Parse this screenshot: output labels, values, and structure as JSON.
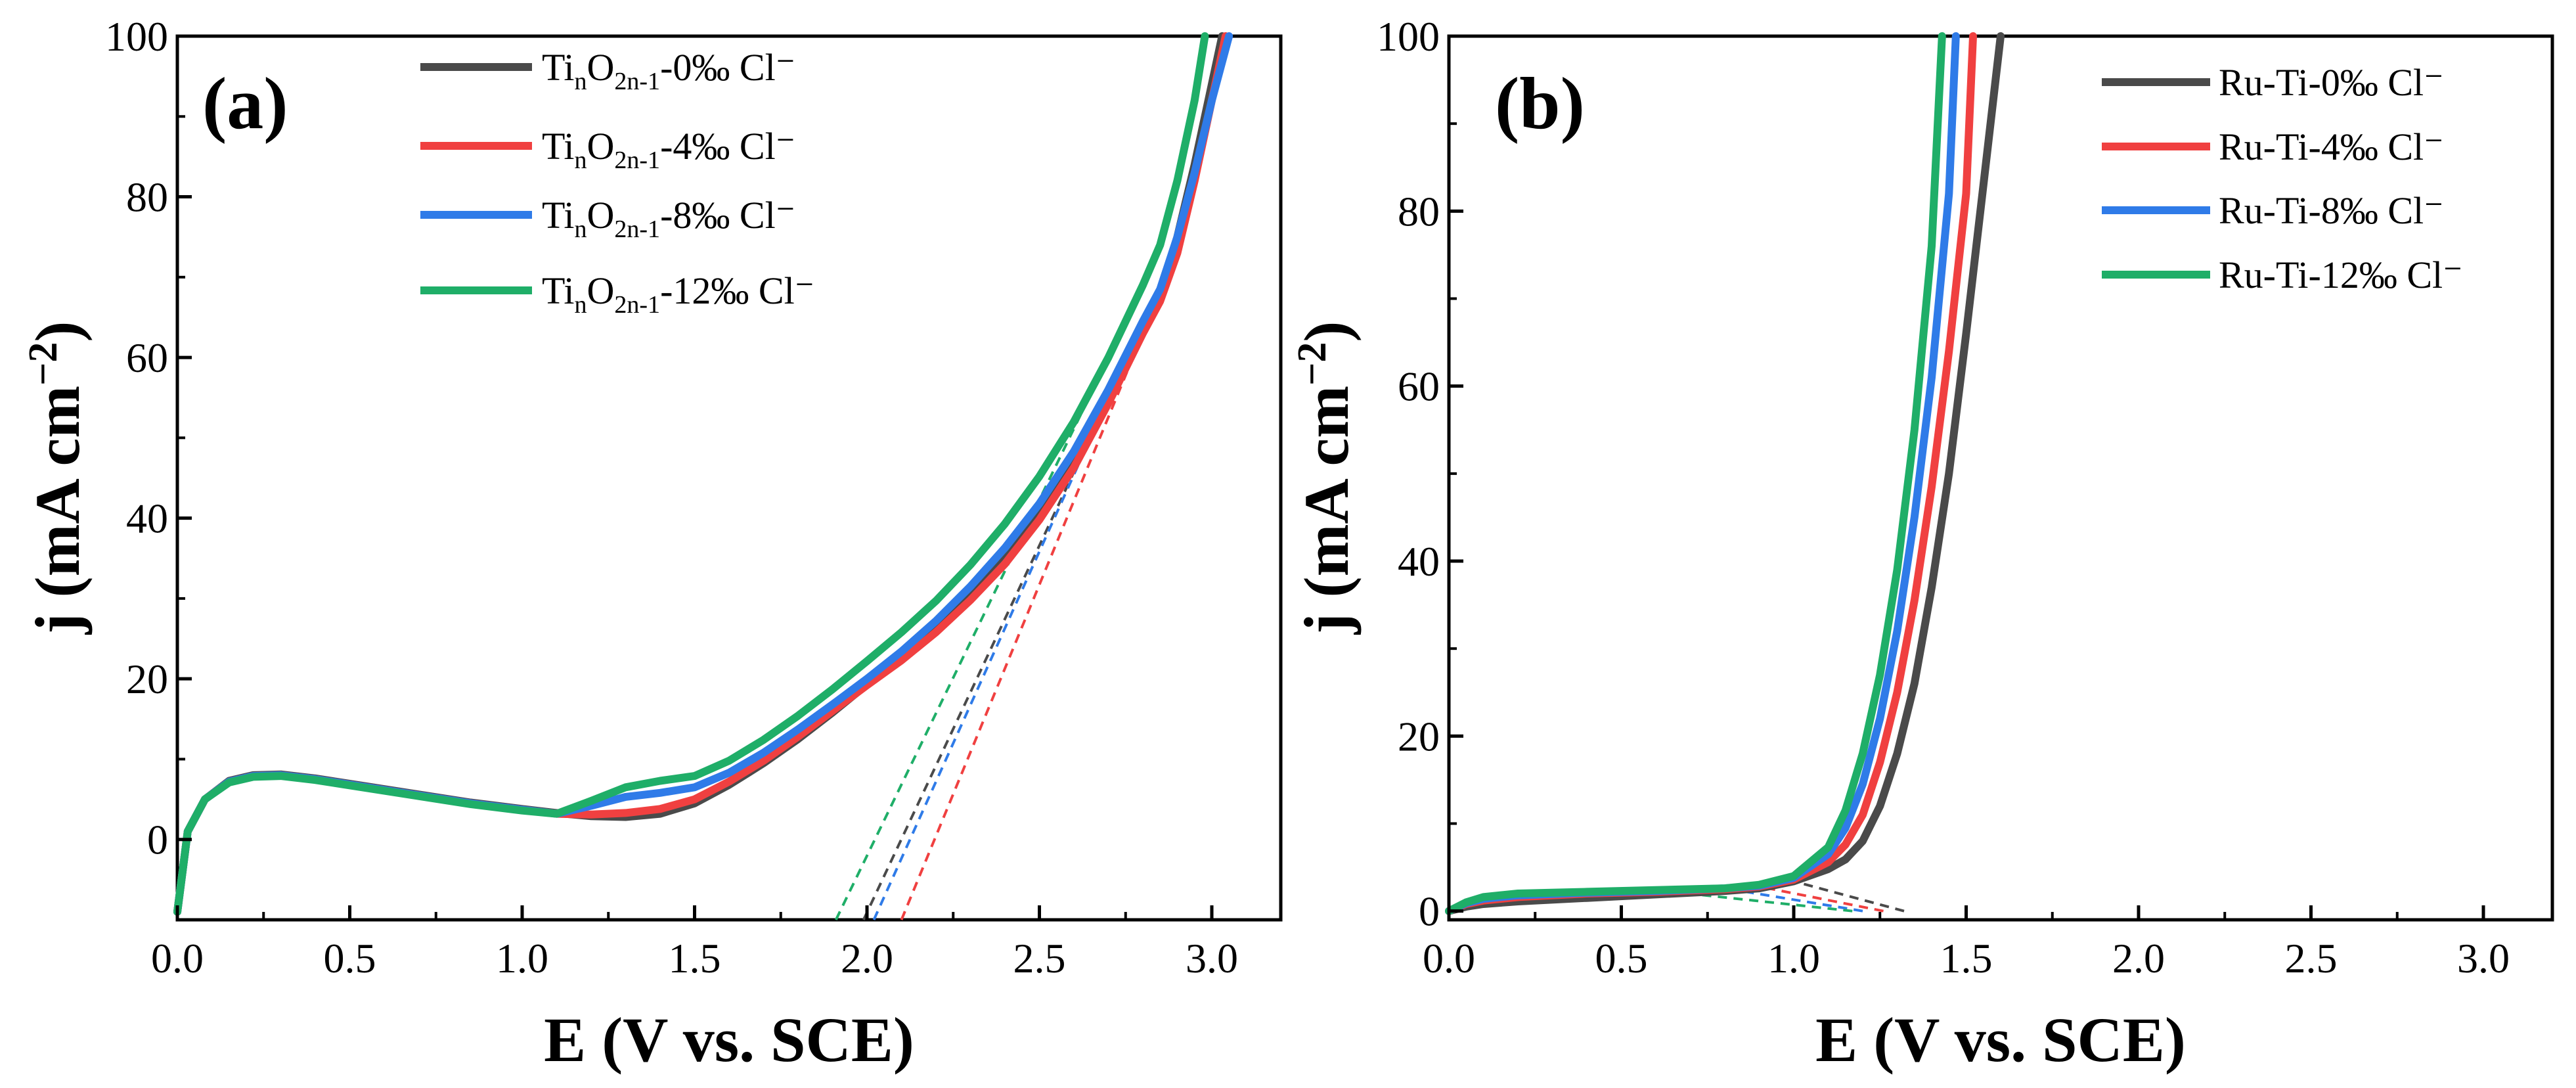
{
  "chart_data": [
    {
      "panel": "(a)",
      "type": "line",
      "xlabel": "E (V vs. SCE)",
      "ylabel": "j (mA cm⁻²)",
      "ylabel_main": "j (mA cm",
      "ylabel_sup": "−2",
      "ylabel_close": ")",
      "xlim": [
        0.0,
        3.2
      ],
      "ylim": [
        -10,
        100
      ],
      "xticks": [
        "0.0",
        "0.5",
        "1.0",
        "1.5",
        "2.0",
        "2.5",
        "3.0"
      ],
      "xtick_values": [
        0.0,
        0.5,
        1.0,
        1.5,
        2.0,
        2.5,
        3.0
      ],
      "yticks": [
        "0",
        "20",
        "40",
        "60",
        "80",
        "100"
      ],
      "ytick_values": [
        0,
        20,
        40,
        60,
        80,
        100
      ],
      "series": [
        {
          "name": "TinO2n-1-0‰ Cl⁻",
          "label_parts": [
            "Ti",
            "n",
            "O",
            "2n-1",
            "-0‰ Cl⁻"
          ],
          "color": "#4a4a4a",
          "x": [
            0.0,
            0.03,
            0.08,
            0.15,
            0.22,
            0.3,
            0.4,
            0.55,
            0.7,
            0.85,
            1.0,
            1.1,
            1.2,
            1.3,
            1.4,
            1.5,
            1.6,
            1.7,
            1.8,
            1.9,
            2.0,
            2.1,
            2.2,
            2.3,
            2.4,
            2.5,
            2.6,
            2.7,
            2.8,
            2.85,
            2.9,
            2.95,
            3.0,
            3.03
          ],
          "y": [
            -9,
            1,
            5,
            7.3,
            8,
            8.1,
            7.6,
            6.6,
            5.6,
            4.6,
            3.8,
            3.3,
            2.9,
            2.8,
            3.2,
            4.5,
            6.8,
            9.5,
            12.5,
            15.8,
            19.3,
            22.8,
            26.5,
            30.6,
            35.2,
            40.6,
            47,
            55,
            64,
            68,
            75,
            84,
            94,
            100
          ],
          "onset": 1.99
        },
        {
          "name": "TinO2n-1-4‰ Cl⁻",
          "label_parts": [
            "Ti",
            "n",
            "O",
            "2n-1",
            "-4‰ Cl⁻"
          ],
          "color": "#f04040",
          "x": [
            0.0,
            0.03,
            0.08,
            0.15,
            0.22,
            0.3,
            0.4,
            0.55,
            0.7,
            0.85,
            1.0,
            1.1,
            1.2,
            1.3,
            1.4,
            1.5,
            1.6,
            1.7,
            1.8,
            1.9,
            2.0,
            2.1,
            2.2,
            2.3,
            2.4,
            2.5,
            2.6,
            2.7,
            2.8,
            2.85,
            2.9,
            2.95,
            3.0,
            3.04
          ],
          "y": [
            -9,
            1,
            5,
            7.2,
            7.9,
            8,
            7.5,
            6.5,
            5.5,
            4.5,
            3.7,
            3.2,
            3.1,
            3.3,
            3.8,
            5,
            7.2,
            9.8,
            12.8,
            16,
            19.2,
            22.3,
            25.8,
            29.8,
            34.3,
            39.8,
            46.3,
            54.3,
            63,
            67,
            73,
            82,
            92,
            100
          ],
          "onset": 2.1
        },
        {
          "name": "TinO2n-1-8‰ Cl⁻",
          "label_parts": [
            "Ti",
            "n",
            "O",
            "2n-1",
            "-8‰ Cl⁻"
          ],
          "color": "#2f7be8",
          "x": [
            0.0,
            0.03,
            0.08,
            0.15,
            0.22,
            0.3,
            0.4,
            0.55,
            0.7,
            0.85,
            1.0,
            1.1,
            1.2,
            1.3,
            1.4,
            1.5,
            1.6,
            1.7,
            1.8,
            1.9,
            2.0,
            2.1,
            2.2,
            2.3,
            2.4,
            2.5,
            2.6,
            2.7,
            2.8,
            2.85,
            2.9,
            2.95,
            3.0,
            3.05
          ],
          "y": [
            -9,
            1,
            5,
            7.2,
            7.9,
            8,
            7.5,
            6.5,
            5.5,
            4.5,
            3.7,
            3.2,
            4.2,
            5.3,
            5.8,
            6.5,
            8.3,
            10.8,
            13.7,
            16.8,
            20,
            23.4,
            27.2,
            31.5,
            36.3,
            41.8,
            48.3,
            56,
            64.5,
            68.5,
            75,
            83,
            92,
            100
          ],
          "onset": 2.02
        },
        {
          "name": "TinO2n-1-12‰ Cl⁻",
          "label_parts": [
            "Ti",
            "n",
            "O",
            "2n-1",
            "-12‰ Cl⁻"
          ],
          "color": "#1fae68",
          "x": [
            0.0,
            0.03,
            0.08,
            0.15,
            0.22,
            0.3,
            0.4,
            0.55,
            0.7,
            0.85,
            1.0,
            1.1,
            1.2,
            1.3,
            1.4,
            1.5,
            1.6,
            1.7,
            1.8,
            1.9,
            2.0,
            2.1,
            2.2,
            2.3,
            2.4,
            2.5,
            2.6,
            2.7,
            2.8,
            2.85,
            2.9,
            2.95,
            2.98
          ],
          "y": [
            -9,
            1,
            5,
            7.1,
            7.8,
            7.9,
            7.4,
            6.4,
            5.4,
            4.4,
            3.6,
            3.2,
            4.8,
            6.5,
            7.3,
            7.9,
            9.8,
            12.4,
            15.4,
            18.7,
            22.2,
            25.8,
            29.7,
            34.2,
            39.3,
            45.2,
            52,
            60,
            69,
            74,
            82,
            92,
            100
          ],
          "onset": 1.91
        }
      ]
    },
    {
      "panel": "(b)",
      "type": "line",
      "xlabel": "E (V vs. SCE)",
      "ylabel": "j (mA cm⁻²)",
      "ylabel_main": "j (mA cm",
      "ylabel_sup": "−2",
      "ylabel_close": ")",
      "xlim": [
        0.0,
        3.2
      ],
      "ylim": [
        -1,
        100
      ],
      "xticks": [
        "0.0",
        "0.5",
        "1.0",
        "1.5",
        "2.0",
        "2.5",
        "3.0"
      ],
      "xtick_values": [
        0.0,
        0.5,
        1.0,
        1.5,
        2.0,
        2.5,
        3.0
      ],
      "yticks": [
        "0",
        "20",
        "40",
        "60",
        "80",
        "100"
      ],
      "ytick_values": [
        0,
        20,
        40,
        60,
        80,
        100
      ],
      "series": [
        {
          "name": "Ru-Ti-0‰ Cl⁻",
          "label_parts": [
            "Ru-Ti-0‰ Cl⁻"
          ],
          "color": "#4a4a4a",
          "x": [
            0.0,
            0.05,
            0.1,
            0.2,
            0.4,
            0.6,
            0.8,
            0.9,
            1.0,
            1.1,
            1.15,
            1.2,
            1.25,
            1.3,
            1.35,
            1.4,
            1.45,
            1.5,
            1.55,
            1.6
          ],
          "y": [
            0,
            0.5,
            0.8,
            1.1,
            1.5,
            1.9,
            2.3,
            2.6,
            3.4,
            4.8,
            5.9,
            8,
            12,
            18,
            26,
            37,
            50,
            66,
            83,
            100
          ],
          "onset": 1.32
        },
        {
          "name": "Ru-Ti-4‰ Cl⁻",
          "label_parts": [
            "Ru-Ti-4‰ Cl⁻"
          ],
          "color": "#f04040",
          "x": [
            0.0,
            0.05,
            0.1,
            0.2,
            0.4,
            0.6,
            0.8,
            0.9,
            1.0,
            1.1,
            1.15,
            1.2,
            1.25,
            1.3,
            1.35,
            1.4,
            1.45,
            1.5,
            1.52
          ],
          "y": [
            0,
            0.8,
            1.2,
            1.6,
            2,
            2.2,
            2.5,
            2.8,
            3.6,
            5.6,
            7.6,
            11,
            17,
            25,
            35.5,
            48.5,
            64,
            82,
            100
          ],
          "onset": 1.26
        },
        {
          "name": "Ru-Ti-8‰ Cl⁻",
          "label_parts": [
            "Ru-Ti-8‰ Cl⁻"
          ],
          "color": "#2f7be8",
          "x": [
            0.0,
            0.05,
            0.1,
            0.2,
            0.4,
            0.6,
            0.8,
            0.9,
            1.0,
            1.1,
            1.15,
            1.2,
            1.25,
            1.3,
            1.35,
            1.4,
            1.45,
            1.47
          ],
          "y": [
            0,
            0.9,
            1.4,
            1.8,
            2.1,
            2.3,
            2.6,
            2.9,
            3.8,
            6.5,
            9.5,
            14.5,
            22,
            32,
            45,
            61,
            82,
            100
          ],
          "onset": 1.2
        },
        {
          "name": "Ru-Ti-12‰ Cl⁻",
          "label_parts": [
            "Ru-Ti-12‰ Cl⁻"
          ],
          "color": "#1fae68",
          "x": [
            0.0,
            0.05,
            0.1,
            0.2,
            0.4,
            0.6,
            0.8,
            0.9,
            1.0,
            1.1,
            1.15,
            1.2,
            1.25,
            1.3,
            1.35,
            1.4,
            1.43
          ],
          "y": [
            0,
            1,
            1.6,
            2,
            2.2,
            2.4,
            2.6,
            3,
            4,
            7.3,
            11.5,
            18,
            27,
            39,
            55,
            76,
            100
          ],
          "onset": 1.17
        }
      ]
    }
  ]
}
